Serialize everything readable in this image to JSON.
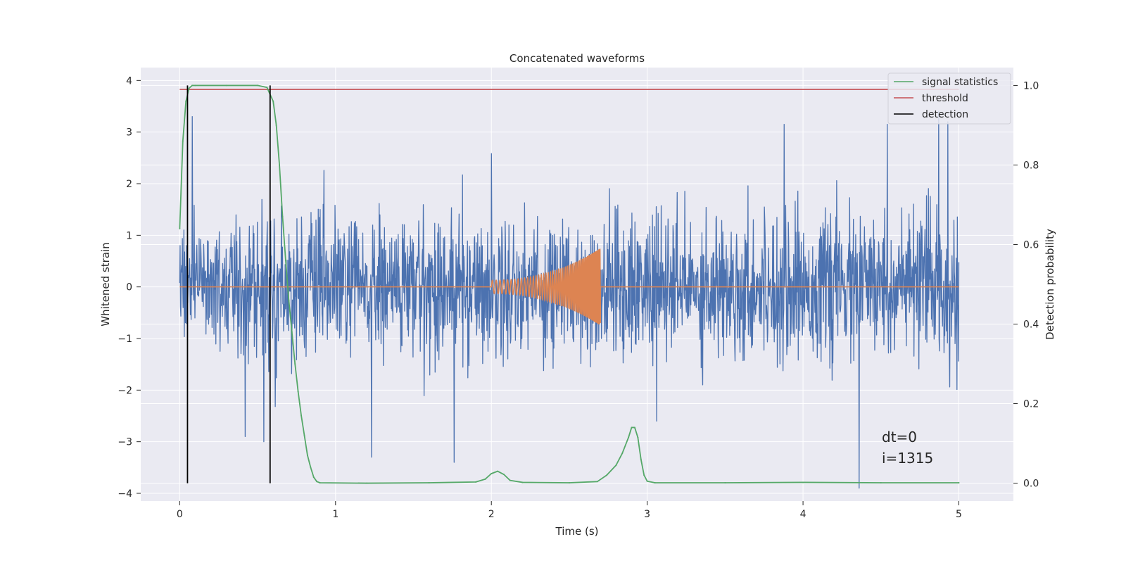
{
  "chart_data": {
    "type": "line",
    "title": "Concatenated waveforms",
    "xlabel": "Time (s)",
    "ylabel": "Whitened strain",
    "y2label": "Detection probability",
    "xlim": [
      -0.25,
      5.35
    ],
    "ylim": [
      -4.15,
      4.25
    ],
    "y2lim": [
      -0.045,
      1.045
    ],
    "xticks": [
      0,
      1,
      2,
      3,
      4,
      5
    ],
    "xtick_labels": [
      "0",
      "1",
      "2",
      "3",
      "4",
      "5"
    ],
    "yticks": [
      4,
      3,
      2,
      1,
      0,
      -1,
      -2,
      -3,
      -4
    ],
    "ytick_labels": [
      "4",
      "3",
      "2",
      "1",
      "0",
      "−1",
      "−2",
      "−3",
      "−4"
    ],
    "y2ticks": [
      1.0,
      0.8,
      0.6,
      0.4,
      0.2,
      0.0
    ],
    "y2tick_labels": [
      "1.0",
      "0.8",
      "0.6",
      "0.4",
      "0.2",
      "0.0"
    ],
    "grid": true,
    "legend_position": "top-right",
    "annotations": [
      "dt=0",
      "i=1315"
    ],
    "colors": {
      "noise": "#4c72b0",
      "waveform": "#dd8452",
      "signal_statistics": "#55a868",
      "threshold": "#c44e52",
      "detection": "#000000",
      "background": "#eaeaf2",
      "grid": "#ffffff"
    },
    "series": [
      {
        "key": "noise",
        "axis": "left",
        "style": "noise",
        "x_range": [
          0,
          5
        ],
        "samples": 2048,
        "rms": 0.65,
        "peaks": [
          {
            "x": 0.08,
            "y": 3.3
          },
          {
            "x": 0.42,
            "y": -2.9
          },
          {
            "x": 0.54,
            "y": -3.0
          },
          {
            "x": 1.23,
            "y": -3.3
          },
          {
            "x": 1.76,
            "y": -3.4
          },
          {
            "x": 3.06,
            "y": -2.6
          },
          {
            "x": 3.88,
            "y": 3.15
          },
          {
            "x": 4.36,
            "y": -3.9
          },
          {
            "x": 4.54,
            "y": 3.15
          },
          {
            "x": 4.87,
            "y": 3.4
          },
          {
            "x": 4.93,
            "y": 3.2
          }
        ]
      },
      {
        "key": "waveform",
        "axis": "left",
        "style": "chirp",
        "chirp_start": 2.0,
        "chirp_end": 2.7,
        "amp_start": 0.13,
        "amp_end": 0.75,
        "x_range": [
          0,
          5
        ]
      },
      {
        "key": "signal_statistics",
        "name": "signal statistics",
        "axis": "right",
        "style": "line",
        "x": [
          0.0,
          0.02,
          0.04,
          0.06,
          0.08,
          0.1,
          0.3,
          0.5,
          0.56,
          0.6,
          0.62,
          0.64,
          0.66,
          0.68,
          0.7,
          0.72,
          0.74,
          0.76,
          0.78,
          0.8,
          0.82,
          0.84,
          0.86,
          0.88,
          0.9,
          1.2,
          1.6,
          1.9,
          1.96,
          2.0,
          2.04,
          2.08,
          2.12,
          2.2,
          2.5,
          2.68,
          2.74,
          2.8,
          2.84,
          2.88,
          2.9,
          2.92,
          2.94,
          2.96,
          2.98,
          3.0,
          3.05,
          3.5,
          4.0,
          4.5,
          5.0
        ],
        "y": [
          0.64,
          0.86,
          0.96,
          0.993,
          1.0,
          1.0,
          1.0,
          1.0,
          0.995,
          0.96,
          0.9,
          0.8,
          0.67,
          0.56,
          0.46,
          0.38,
          0.3,
          0.23,
          0.17,
          0.12,
          0.07,
          0.04,
          0.015,
          0.004,
          0.001,
          0.0,
          0.001,
          0.003,
          0.01,
          0.024,
          0.03,
          0.022,
          0.007,
          0.002,
          0.001,
          0.004,
          0.02,
          0.045,
          0.075,
          0.115,
          0.14,
          0.14,
          0.115,
          0.06,
          0.02,
          0.005,
          0.001,
          0.001,
          0.002,
          0.001,
          0.001
        ]
      },
      {
        "key": "threshold",
        "name": "threshold",
        "axis": "right",
        "style": "hline",
        "y": 0.99,
        "x_range": [
          0,
          5
        ]
      },
      {
        "key": "detection",
        "name": "detection",
        "axis": "right",
        "style": "vlines",
        "x": [
          0.05,
          0.58
        ],
        "y_range": [
          0.0,
          1.0
        ]
      }
    ]
  }
}
